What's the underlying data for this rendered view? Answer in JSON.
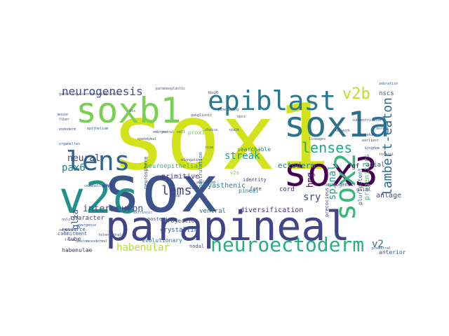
{
  "wordcloud": {
    "background": "#ffffff",
    "palette": [
      "#440154",
      "#3b528b",
      "#21918c",
      "#5ec962",
      "#fde725"
    ],
    "words": [
      {
        "text": "sox1",
        "weight": 100,
        "color": "#d2e21b",
        "rotate": false
      },
      {
        "text": "sox",
        "weight": 96,
        "color": "#3b528b",
        "rotate": false
      },
      {
        "text": "parapineal",
        "weight": 70,
        "color": "#414487",
        "rotate": false
      },
      {
        "text": "v2c",
        "weight": 68,
        "color": "#21918c",
        "rotate": false
      },
      {
        "text": "sox3",
        "weight": 60,
        "color": "#440154",
        "rotate": false
      },
      {
        "text": "soxb1",
        "weight": 55,
        "color": "#7ad151",
        "rotate": false
      },
      {
        "text": "sox1a",
        "weight": 55,
        "color": "#2c728e",
        "rotate": false
      },
      {
        "text": "lens",
        "weight": 45,
        "color": "#33638d",
        "rotate": false
      },
      {
        "text": "epiblast",
        "weight": 42,
        "color": "#2a788e",
        "rotate": false
      },
      {
        "text": "sox2",
        "weight": 40,
        "color": "#35b779",
        "rotate": true
      },
      {
        "text": "neuroectoderm",
        "weight": 30,
        "color": "#29af7f",
        "rotate": false
      },
      {
        "text": "lenses",
        "weight": 24,
        "color": "#22a884",
        "rotate": false
      },
      {
        "text": "neurogenesis",
        "weight": 22,
        "color": "#3e4989",
        "rotate": false
      },
      {
        "text": "lambert-eaton",
        "weight": 20,
        "color": "#31688e",
        "rotate": true
      },
      {
        "text": "v2b",
        "weight": 22,
        "color": "#c2df23",
        "rotate": false
      },
      {
        "text": "lems",
        "weight": 20,
        "color": "#404588",
        "rotate": false
      },
      {
        "text": "streak",
        "weight": 19,
        "color": "#1f9e89",
        "rotate": false
      },
      {
        "text": "interneuron",
        "weight": 18,
        "color": "#3b528b",
        "rotate": false
      },
      {
        "text": "pax6",
        "weight": 18,
        "color": "#26828e",
        "rotate": false
      },
      {
        "text": "habenular",
        "weight": 17,
        "color": "#b5de2b",
        "rotate": false
      },
      {
        "text": "spinal",
        "weight": 17,
        "color": "#1fa187",
        "rotate": true
      },
      {
        "text": "sry",
        "weight": 17,
        "color": "#414487",
        "rotate": false
      },
      {
        "text": "hmg",
        "weight": 16,
        "color": "#440154",
        "rotate": true
      },
      {
        "text": "neural",
        "weight": 15,
        "color": "#3f4788",
        "rotate": false
      },
      {
        "text": "glia",
        "weight": 15,
        "color": "#3b528b",
        "rotate": true
      },
      {
        "text": "v2",
        "weight": 15,
        "color": "#2d708e",
        "rotate": false
      },
      {
        "text": "ectoderm",
        "weight": 13,
        "color": "#2a788e",
        "rotate": false
      },
      {
        "text": "progenitors",
        "weight": 13,
        "color": "#48c16e",
        "rotate": true
      },
      {
        "text": "anlage",
        "weight": 12,
        "color": "#3e4a89",
        "rotate": false
      },
      {
        "text": "primitive",
        "weight": 12,
        "color": "#46337e",
        "rotate": false
      },
      {
        "text": "myasthenic",
        "weight": 12,
        "color": "#27808e",
        "rotate": false
      },
      {
        "text": "diversification",
        "weight": 12,
        "color": "#472d7b",
        "rotate": false
      },
      {
        "text": "character",
        "weight": 11,
        "color": "#3f4788",
        "rotate": false
      },
      {
        "text": "crystallin",
        "weight": 11,
        "color": "#3b528b",
        "rotate": false
      },
      {
        "text": "ventral",
        "weight": 11,
        "color": "#2c728e",
        "rotate": false
      },
      {
        "text": "cord",
        "weight": 11,
        "color": "#482878",
        "rotate": false
      },
      {
        "text": "radial",
        "weight": 11,
        "color": "#31688e",
        "rotate": false
      },
      {
        "text": "neuroepithelial",
        "weight": 11,
        "color": "#37b878",
        "rotate": false
      },
      {
        "text": "nscs",
        "weight": 11,
        "color": "#3b528b",
        "rotate": false
      },
      {
        "text": "fgf",
        "weight": 11,
        "color": "#440154",
        "rotate": false
      },
      {
        "text": "searchable",
        "weight": 10,
        "color": "#25848e",
        "rotate": false
      },
      {
        "text": "pineal",
        "weight": 10,
        "color": "#2a788e",
        "rotate": false
      },
      {
        "text": "shh",
        "weight": 10,
        "color": "#46307e",
        "rotate": false
      },
      {
        "text": "tube",
        "weight": 10,
        "color": "#453781",
        "rotate": false
      },
      {
        "text": "prox1",
        "weight": 10,
        "color": "#6ccd5a",
        "rotate": false
      },
      {
        "text": "habenulae",
        "weight": 9,
        "color": "#46327e",
        "rotate": false
      },
      {
        "text": "evolutionary",
        "weight": 9,
        "color": "#2e6e8e",
        "rotate": false
      },
      {
        "text": "projection",
        "weight": 9,
        "color": "#3b528b",
        "rotate": false
      },
      {
        "text": "pluripotent",
        "weight": 9,
        "color": "#2d708e",
        "rotate": true
      },
      {
        "text": "anterior",
        "weight": 9,
        "color": "#3b528b",
        "rotate": false
      },
      {
        "text": "neurogenic",
        "weight": 8,
        "color": "#3b528b",
        "rotate": false
      },
      {
        "text": "identity",
        "weight": 8,
        "color": "#3f4788",
        "rotate": false
      },
      {
        "text": "fate",
        "weight": 8,
        "color": "#3b528b",
        "rotate": false
      },
      {
        "text": "glial",
        "weight": 8,
        "color": "#3e4989",
        "rotate": false
      },
      {
        "text": "resource",
        "weight": 8,
        "color": "#3b528b",
        "rotate": false
      },
      {
        "text": "commitment",
        "weight": 8,
        "color": "#3b528b",
        "rotate": false
      },
      {
        "text": "precocious",
        "weight": 8,
        "color": "#3e4989",
        "rotate": true
      },
      {
        "text": "gastrulation",
        "weight": 7,
        "color": "#2e6e8e",
        "rotate": true
      },
      {
        "text": "posterior",
        "weight": 7,
        "color": "#3b528b",
        "rotate": false
      },
      {
        "text": "nodal",
        "weight": 7,
        "color": "#3b528b",
        "rotate": false
      },
      {
        "text": "zone",
        "weight": 7,
        "color": "#3e4989",
        "rotate": false
      },
      {
        "text": "v2a",
        "weight": 8,
        "color": "#7ad151",
        "rotate": false
      },
      {
        "text": "neurosphere",
        "weight": 7,
        "color": "#3b528b",
        "rotate": true
      },
      {
        "text": "telencephalon",
        "weight": 6,
        "color": "#3b528b",
        "rotate": false
      },
      {
        "text": "endoderm",
        "weight": 6,
        "color": "#3b528b",
        "rotate": false
      },
      {
        "text": "organelles",
        "weight": 6,
        "color": "#3b528b",
        "rotate": false
      },
      {
        "text": "cup",
        "weight": 6,
        "color": "#3b528b",
        "rotate": false
      },
      {
        "text": "fiber",
        "weight": 6,
        "color": "#3b528b",
        "rotate": false
      },
      {
        "text": "subventricular",
        "weight": 6,
        "color": "#3b528b",
        "rotate": false
      },
      {
        "text": "earliest",
        "weight": 6,
        "color": "#3b528b",
        "rotate": false
      },
      {
        "text": "ganglionic",
        "weight": 5,
        "color": "#3b528b",
        "rotate": false
      },
      {
        "text": "npcs",
        "weight": 5,
        "color": "#3b528b",
        "rotate": false
      },
      {
        "text": "cerebellar",
        "weight": 5,
        "color": "#3b528b",
        "rotate": false
      },
      {
        "text": "soxb",
        "weight": 5,
        "color": "#3b528b",
        "rotate": false
      },
      {
        "text": "tbx26",
        "weight": 5,
        "color": "#3b528b",
        "rotate": false
      },
      {
        "text": "dlx",
        "weight": 5,
        "color": "#3b528b",
        "rotate": false
      },
      {
        "text": "evergence",
        "weight": 5,
        "color": "#3b528b",
        "rotate": false
      },
      {
        "text": "neuromesodermal",
        "weight": 5,
        "color": "#3b528b",
        "rotate": false
      },
      {
        "text": "epithelium",
        "weight": 5,
        "color": "#3b528b",
        "rotate": false
      },
      {
        "text": "embryos",
        "weight": 5,
        "color": "#3b528b",
        "rotate": false
      },
      {
        "text": "elongation",
        "weight": 5,
        "color": "#3b528b",
        "rotate": false
      },
      {
        "text": "striatum",
        "weight": 5,
        "color": "#3b528b",
        "rotate": false
      },
      {
        "text": "kingdom",
        "weight": 5,
        "color": "#3b528b",
        "rotate": false
      },
      {
        "text": "generating",
        "weight": 5,
        "color": "#3b528b",
        "rotate": false
      },
      {
        "text": "gathering",
        "weight": 5,
        "color": "#3b528b",
        "rotate": false
      },
      {
        "text": "coordination",
        "weight": 5,
        "color": "#3b528b",
        "rotate": false
      },
      {
        "text": "paraneoplastic",
        "weight": 5,
        "color": "#3b528b",
        "rotate": false
      },
      {
        "text": "rostral",
        "weight": 5,
        "color": "#3b528b",
        "rotate": false
      },
      {
        "text": "ablation",
        "weight": 5,
        "color": "#3b528b",
        "rotate": false
      },
      {
        "text": "mouse",
        "weight": 5,
        "color": "#3b528b",
        "rotate": false
      },
      {
        "text": "choice",
        "weight": 5,
        "color": "#3b528b",
        "rotate": false
      },
      {
        "text": "stalk",
        "weight": 5,
        "color": "#3b528b",
        "rotate": false
      },
      {
        "text": "zebrafish",
        "weight": 5,
        "color": "#3b528b",
        "rotate": false
      },
      {
        "text": "dorsal",
        "weight": 5,
        "color": "#3b528b",
        "rotate": false
      },
      {
        "text": "premitral",
        "weight": 5,
        "color": "#3b528b",
        "rotate": false
      },
      {
        "text": "nolz-1",
        "weight": 5,
        "color": "#3b528b",
        "rotate": false
      },
      {
        "text": "segments",
        "weight": 5,
        "color": "#3b528b",
        "rotate": false
      },
      {
        "text": "trunk",
        "weight": 5,
        "color": "#3b528b",
        "rotate": false
      },
      {
        "text": "neural",
        "weight": 5,
        "color": "#3b528b",
        "rotate": false
      },
      {
        "text": "layer",
        "weight": 5,
        "color": "#3b528b",
        "rotate": false
      },
      {
        "text": "cell",
        "weight": 5,
        "color": "#3b528b",
        "rotate": false
      },
      {
        "text": "rise",
        "weight": 5,
        "color": "#3b528b",
        "rotate": false
      },
      {
        "text": "amplified",
        "weight": 5,
        "color": "#3b528b",
        "rotate": false
      },
      {
        "text": "extrinsic",
        "weight": 5,
        "color": "#3b528b",
        "rotate": false
      },
      {
        "text": "lineages",
        "weight": 5,
        "color": "#3b528b",
        "rotate": false
      },
      {
        "text": "network",
        "weight": 5,
        "color": "#3b528b",
        "rotate": false
      },
      {
        "text": "ependymal",
        "weight": 5,
        "color": "#3b528b",
        "rotate": false
      }
    ]
  }
}
